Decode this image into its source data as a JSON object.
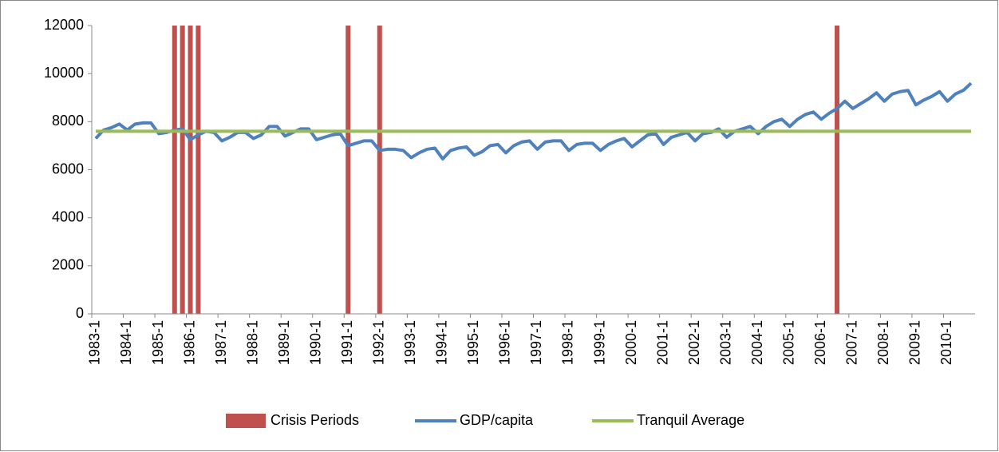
{
  "chart_data": {
    "type": "bar-line",
    "categories": [
      "1983-1",
      null,
      null,
      null,
      "1984-1",
      null,
      null,
      null,
      "1985-1",
      null,
      null,
      null,
      "1986-1",
      null,
      null,
      null,
      "1987-1",
      null,
      null,
      null,
      "1988-1",
      null,
      null,
      null,
      "1989-1",
      null,
      null,
      null,
      "1990-1",
      null,
      null,
      null,
      "1991-1",
      null,
      null,
      null,
      "1992-1",
      null,
      null,
      null,
      "1993-1",
      null,
      null,
      null,
      "1994-1",
      null,
      null,
      null,
      "1995-1",
      null,
      null,
      null,
      "1996-1",
      null,
      null,
      null,
      "1997-1",
      null,
      null,
      null,
      "1998-1",
      null,
      null,
      null,
      "1999-1",
      null,
      null,
      null,
      "2000-1",
      null,
      null,
      null,
      "2001-1",
      null,
      null,
      null,
      "2002-1",
      null,
      null,
      null,
      "2003-1",
      null,
      null,
      null,
      "2004-1",
      null,
      null,
      null,
      "2005-1",
      null,
      null,
      null,
      "2006-1",
      null,
      null,
      null,
      "2007-1",
      null,
      null,
      null,
      "2008-1",
      null,
      null,
      null,
      "2009-1",
      null,
      null,
      null,
      "2010-1",
      null,
      null,
      null
    ],
    "series": [
      {
        "name": "Crisis Periods",
        "kind": "bar",
        "color": "#c0504d",
        "values": [
          null,
          null,
          null,
          null,
          null,
          null,
          null,
          null,
          null,
          null,
          12000,
          12000,
          12000,
          12000,
          null,
          null,
          null,
          null,
          null,
          null,
          null,
          null,
          null,
          null,
          null,
          null,
          null,
          null,
          null,
          null,
          null,
          null,
          12000,
          null,
          null,
          null,
          12000,
          null,
          null,
          null,
          null,
          null,
          null,
          null,
          null,
          null,
          null,
          null,
          null,
          null,
          null,
          null,
          null,
          null,
          null,
          null,
          null,
          null,
          null,
          null,
          null,
          null,
          null,
          null,
          null,
          null,
          null,
          null,
          null,
          null,
          null,
          null,
          null,
          null,
          null,
          null,
          null,
          null,
          null,
          null,
          null,
          null,
          null,
          null,
          null,
          null,
          null,
          null,
          null,
          null,
          null,
          null,
          null,
          null,
          12000,
          null,
          null,
          null,
          null,
          null,
          null,
          null,
          null,
          null,
          null,
          null,
          null,
          null,
          null,
          null,
          null,
          null
        ]
      },
      {
        "name": "GDP/capita",
        "kind": "line",
        "color": "#4f81bd",
        "values": [
          7300,
          7650,
          7750,
          7900,
          7650,
          7900,
          7950,
          7950,
          7500,
          7550,
          7650,
          7700,
          7250,
          7450,
          7600,
          7550,
          7200,
          7350,
          7550,
          7550,
          7300,
          7450,
          7800,
          7800,
          7400,
          7550,
          7700,
          7700,
          7250,
          7350,
          7450,
          7500,
          7000,
          7100,
          7200,
          7200,
          6800,
          6850,
          6850,
          6800,
          6500,
          6700,
          6850,
          6900,
          6450,
          6800,
          6900,
          6950,
          6600,
          6750,
          7000,
          7050,
          6700,
          7000,
          7150,
          7200,
          6850,
          7150,
          7200,
          7200,
          6800,
          7050,
          7100,
          7100,
          6800,
          7050,
          7200,
          7300,
          6950,
          7200,
          7450,
          7500,
          7050,
          7350,
          7450,
          7550,
          7200,
          7500,
          7550,
          7700,
          7350,
          7600,
          7700,
          7800,
          7500,
          7800,
          8000,
          8100,
          7800,
          8100,
          8300,
          8400,
          8100,
          8350,
          8550,
          8850,
          8550,
          8750,
          8950,
          9200,
          8850,
          9150,
          9250,
          9300,
          8700,
          8900,
          9050,
          9250,
          8850,
          9150,
          9300,
          9600
        ]
      },
      {
        "name": "Tranquil Average",
        "kind": "line",
        "color": "#9bbb59",
        "values": [
          7600,
          7600,
          7600,
          7600,
          7600,
          7600,
          7600,
          7600,
          7600,
          7600,
          7600,
          7600,
          7600,
          7600,
          7600,
          7600,
          7600,
          7600,
          7600,
          7600,
          7600,
          7600,
          7600,
          7600,
          7600,
          7600,
          7600,
          7600,
          7600,
          7600,
          7600,
          7600,
          7600,
          7600,
          7600,
          7600,
          7600,
          7600,
          7600,
          7600,
          7600,
          7600,
          7600,
          7600,
          7600,
          7600,
          7600,
          7600,
          7600,
          7600,
          7600,
          7600,
          7600,
          7600,
          7600,
          7600,
          7600,
          7600,
          7600,
          7600,
          7600,
          7600,
          7600,
          7600,
          7600,
          7600,
          7600,
          7600,
          7600,
          7600,
          7600,
          7600,
          7600,
          7600,
          7600,
          7600,
          7600,
          7600,
          7600,
          7600,
          7600,
          7600,
          7600,
          7600,
          7600,
          7600,
          7600,
          7600,
          7600,
          7600,
          7600,
          7600,
          7600,
          7600,
          7600,
          7600,
          7600,
          7600,
          7600,
          7600,
          7600,
          7600,
          7600,
          7600,
          7600,
          7600,
          7600,
          7600,
          7600,
          7600,
          7600,
          7600
        ]
      }
    ],
    "ylim": [
      0,
      12000
    ],
    "yticks": [
      0,
      2000,
      4000,
      6000,
      8000,
      10000,
      12000
    ],
    "grid": false,
    "legend": "bottom"
  }
}
